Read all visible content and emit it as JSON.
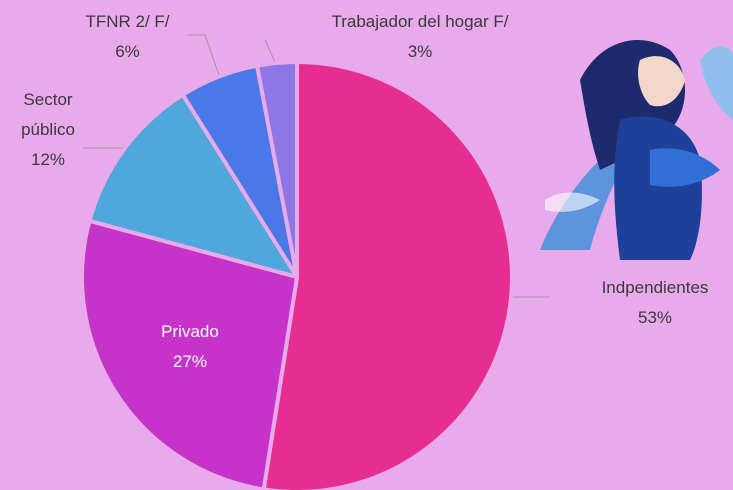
{
  "chart_data": {
    "type": "pie",
    "categories": [
      "Indpendientes",
      "Privado",
      "Sector público",
      "TFNR 2/ F/",
      "Trabajador del hogar F/"
    ],
    "values": [
      53,
      27,
      12,
      6,
      3
    ],
    "value_labels": [
      "53%",
      "27%",
      "12%",
      "6%",
      "3%"
    ],
    "colors": [
      "#e52e8f",
      "#c533c9",
      "#4fa7dc",
      "#4a78e6",
      "#8c77e5"
    ]
  }
}
